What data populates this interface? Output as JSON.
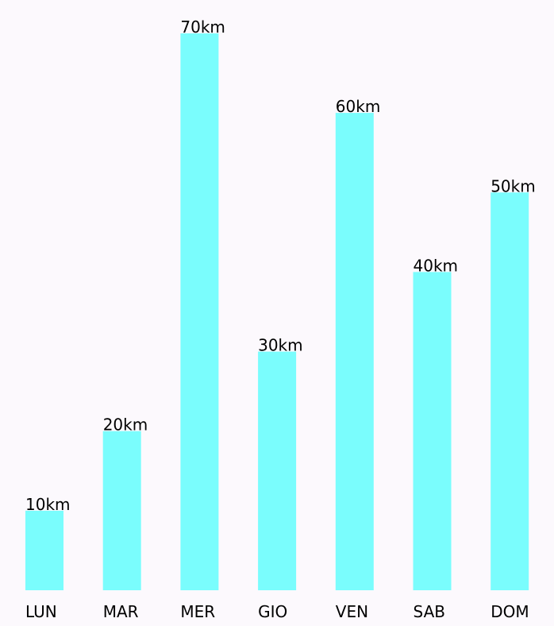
{
  "chart_data": {
    "type": "bar",
    "title": "",
    "xlabel": "",
    "ylabel": "",
    "categories": [
      "LUN",
      "MAR",
      "MER",
      "GIO",
      "VEN",
      "SAB",
      "DOM"
    ],
    "values": [
      10,
      20,
      70,
      30,
      60,
      40,
      50
    ],
    "value_labels": [
      "10km",
      "20km",
      "70km",
      "30km",
      "60km",
      "40km",
      "50km"
    ],
    "unit": "km",
    "ylim": [
      0,
      70
    ],
    "grid": false,
    "legend": "none",
    "bar_color": "#7afdfd"
  }
}
